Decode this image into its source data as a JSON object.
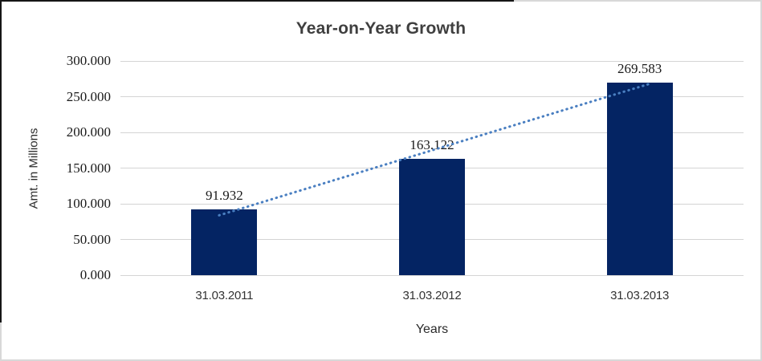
{
  "chart_data": {
    "type": "bar",
    "title": "Year-on-Year Growth",
    "xlabel": "Years",
    "ylabel": "Amt. in Millions",
    "categories": [
      "31.03.2011",
      "31.03.2012",
      "31.03.2013"
    ],
    "values": [
      91.932,
      163.122,
      269.583
    ],
    "data_labels": [
      "91.932",
      "163.122",
      "269.583"
    ],
    "ylim": [
      0,
      300
    ],
    "ytick_step": 50,
    "ytick_labels": [
      "0.000",
      "50.000",
      "100.000",
      "150.000",
      "200.000",
      "250.000",
      "300.000"
    ],
    "grid": true,
    "legend": false,
    "trendline": {
      "type": "linear",
      "style": "dotted"
    },
    "colors": {
      "bar": "#042463",
      "trendline": "#4a7fc1",
      "gridline": "#d4d4d4",
      "title_text": "#3f3f3f",
      "axis_text": "#2b2b2b",
      "tick_text": "#1a1a1a",
      "background": "#ffffff"
    }
  }
}
